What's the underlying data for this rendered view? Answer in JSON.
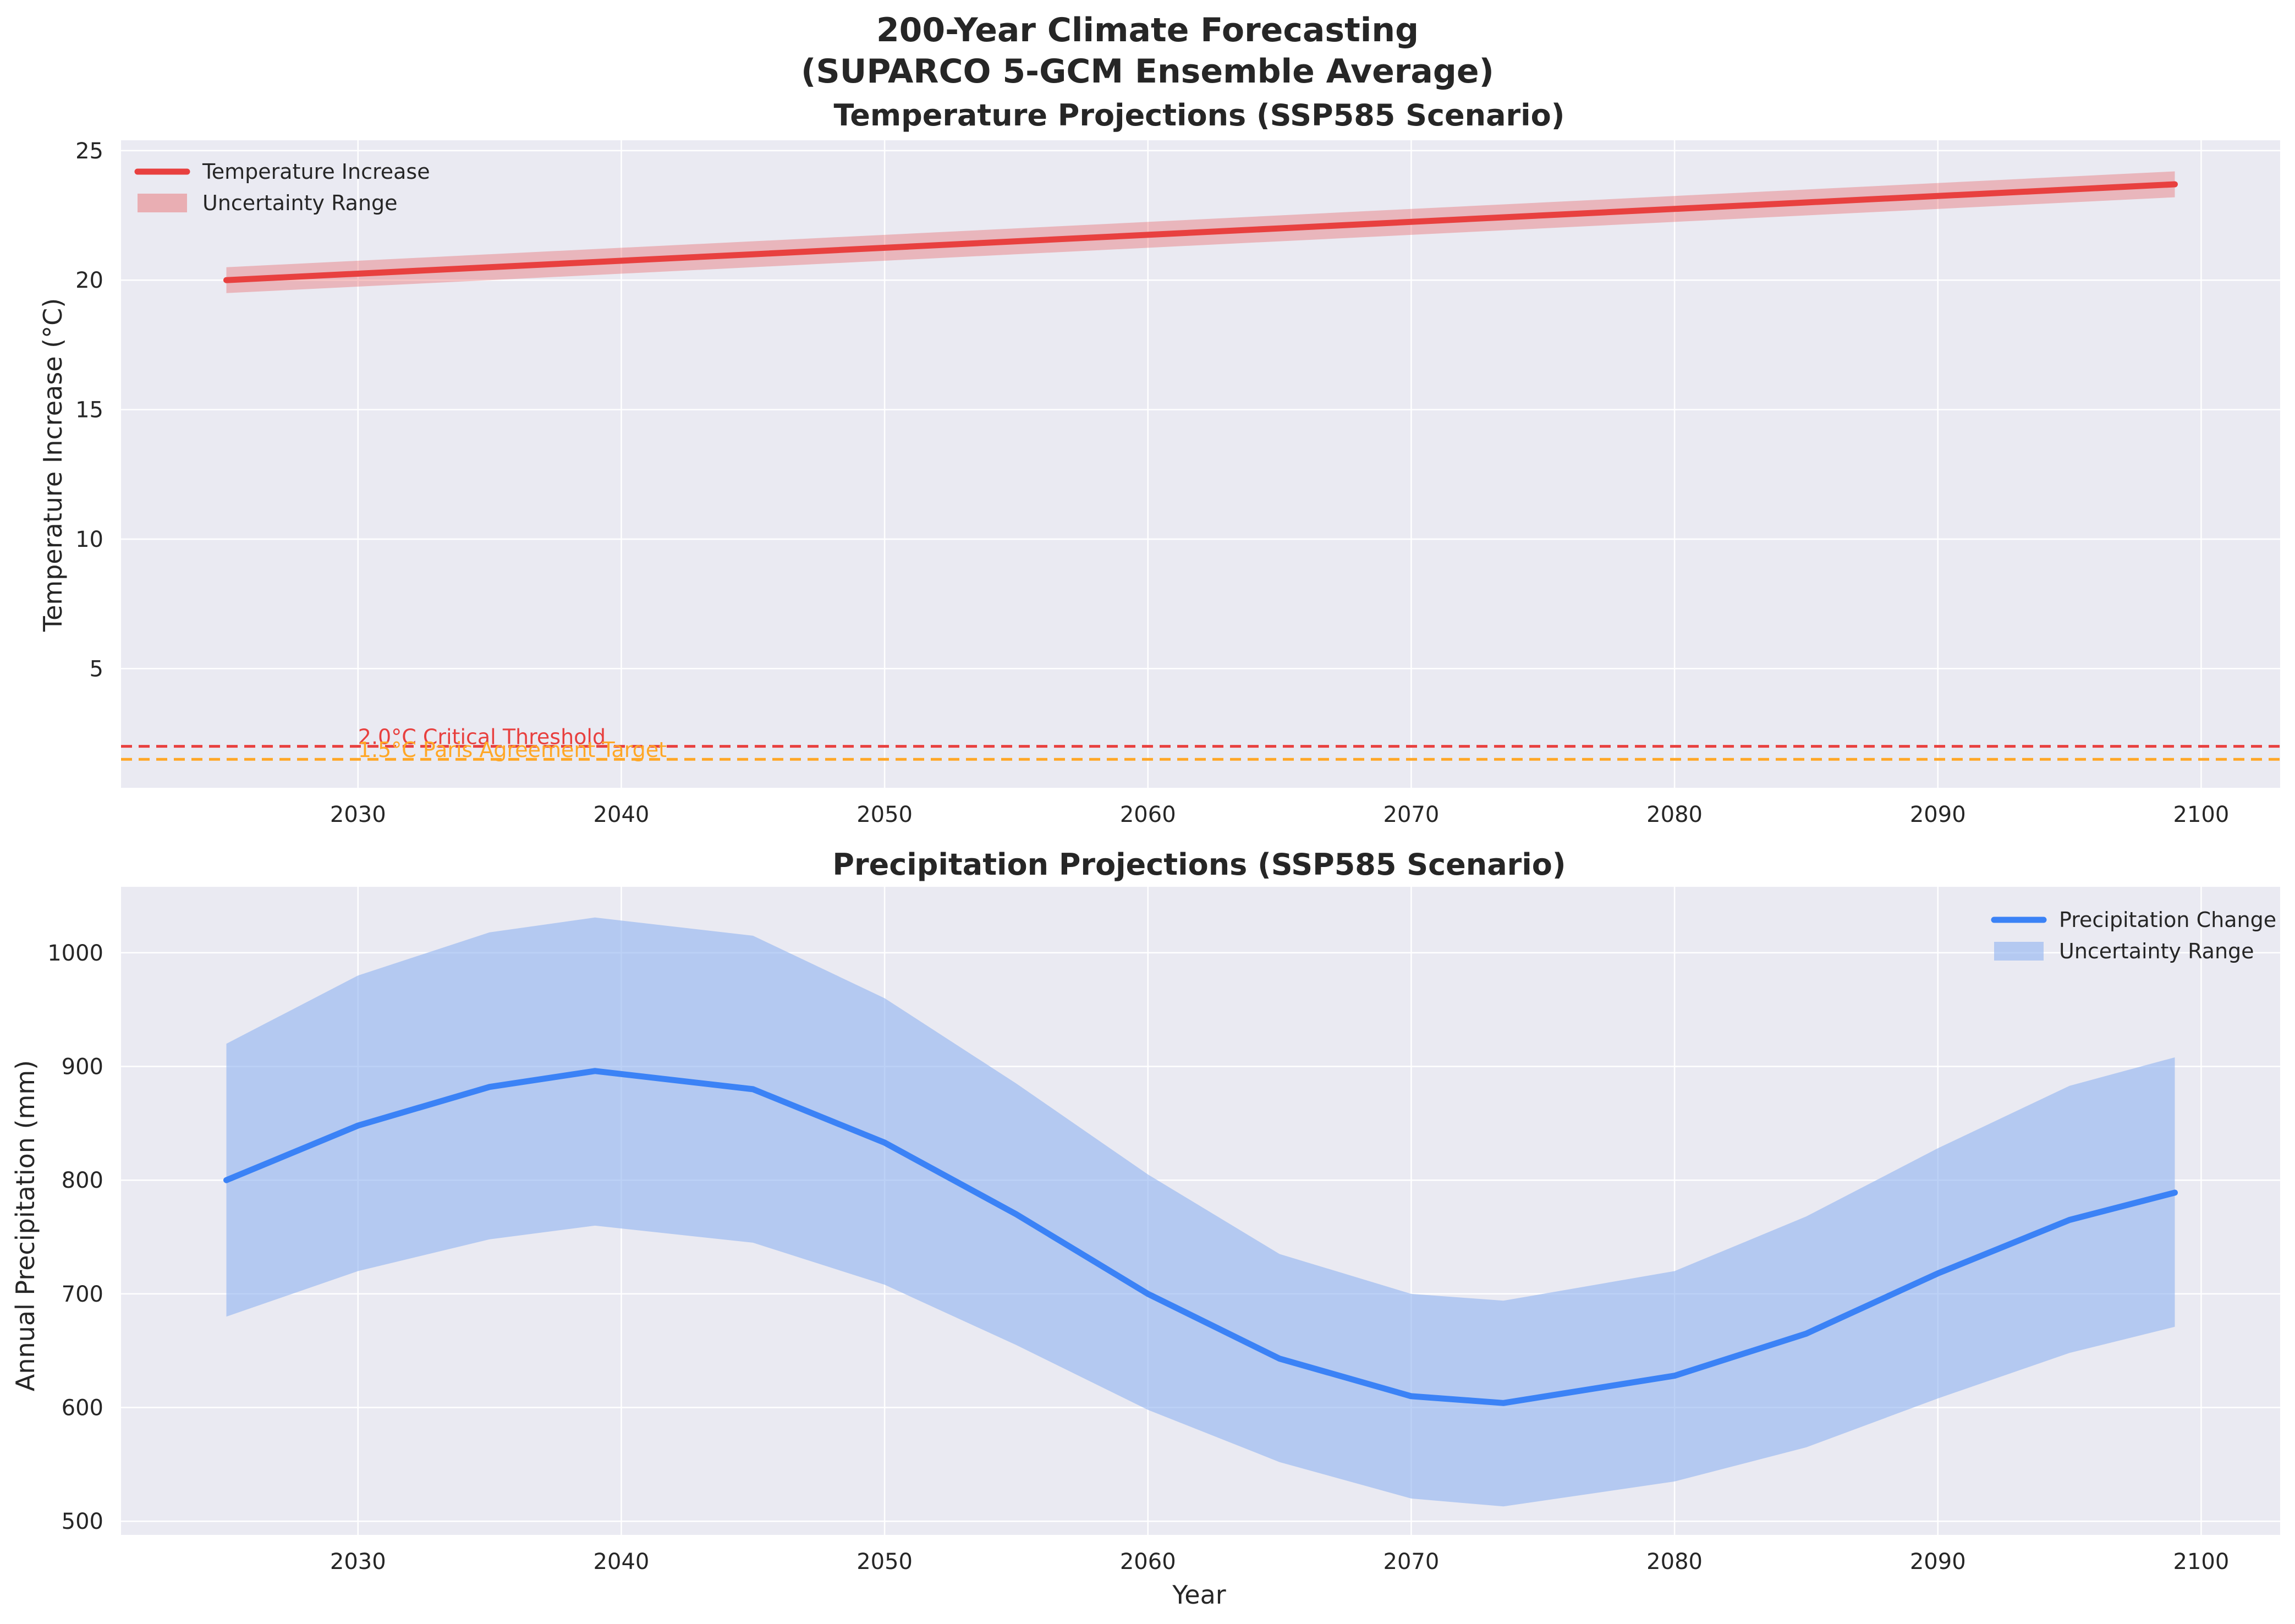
{
  "figure": {
    "title_line1": "200-Year Climate Forecasting",
    "title_line2": "(SUPARCO 5-GCM Ensemble Average)"
  },
  "chart_data": [
    {
      "type": "line",
      "title": "Temperature Projections (SSP585 Scenario)",
      "xlabel": "",
      "ylabel": "Temperature Increase (°C)",
      "xlim": [
        2021,
        2103
      ],
      "ylim": [
        0.4,
        25.4
      ],
      "xticks": [
        2030,
        2040,
        2050,
        2060,
        2070,
        2080,
        2090,
        2100
      ],
      "yticks": [
        5,
        10,
        15,
        20,
        25
      ],
      "grid": true,
      "legend_position": "upper left",
      "series": [
        {
          "name": "Temperature Increase",
          "kind": "line",
          "color": "#e8403f",
          "x": [
            2025,
            2035,
            2045,
            2055,
            2065,
            2075,
            2085,
            2099
          ],
          "y": [
            20.0,
            20.5,
            21.0,
            21.5,
            22.0,
            22.5,
            23.0,
            23.7
          ]
        },
        {
          "name": "Uncertainty Range",
          "kind": "band",
          "color": "#e8403f",
          "x": [
            2025,
            2099
          ],
          "lower": [
            19.5,
            23.2
          ],
          "upper": [
            20.5,
            24.2
          ]
        }
      ],
      "reference_lines": [
        {
          "label": "2.0°C Critical Threshold",
          "y": 2.0,
          "color": "#e8403f"
        },
        {
          "label": "1.5°C Paris Agreement Target",
          "y": 1.5,
          "color": "#ffa726"
        }
      ]
    },
    {
      "type": "line",
      "title": "Precipitation Projections (SSP585 Scenario)",
      "xlabel": "Year",
      "ylabel": "Annual Precipitation (mm)",
      "xlim": [
        2021,
        2103
      ],
      "ylim": [
        488,
        1058
      ],
      "xticks": [
        2030,
        2040,
        2050,
        2060,
        2070,
        2080,
        2090,
        2100
      ],
      "yticks": [
        500,
        600,
        700,
        800,
        900,
        1000
      ],
      "grid": true,
      "legend_position": "upper right",
      "series": [
        {
          "name": "Precipitation Change",
          "kind": "line",
          "color": "#3b82f6",
          "x": [
            2025,
            2030,
            2035,
            2039,
            2045,
            2050,
            2055,
            2060,
            2065,
            2070,
            2073.5,
            2080,
            2085,
            2090,
            2095,
            2099
          ],
          "y": [
            800,
            848,
            882,
            896,
            880,
            833,
            770,
            700,
            643,
            610,
            604,
            628,
            665,
            718,
            765,
            789
          ]
        },
        {
          "name": "Uncertainty Range",
          "kind": "band",
          "color": "#8fb3f0",
          "x": [
            2025,
            2030,
            2035,
            2039,
            2045,
            2050,
            2055,
            2060,
            2065,
            2070,
            2073.5,
            2080,
            2085,
            2090,
            2095,
            2099
          ],
          "lower": [
            680,
            720,
            748,
            760,
            745,
            708,
            655,
            598,
            552,
            520,
            513,
            535,
            565,
            608,
            648,
            671
          ],
          "upper": [
            920,
            980,
            1018,
            1031,
            1015,
            960,
            885,
            805,
            735,
            700,
            694,
            720,
            768,
            828,
            883,
            908
          ]
        }
      ]
    }
  ]
}
